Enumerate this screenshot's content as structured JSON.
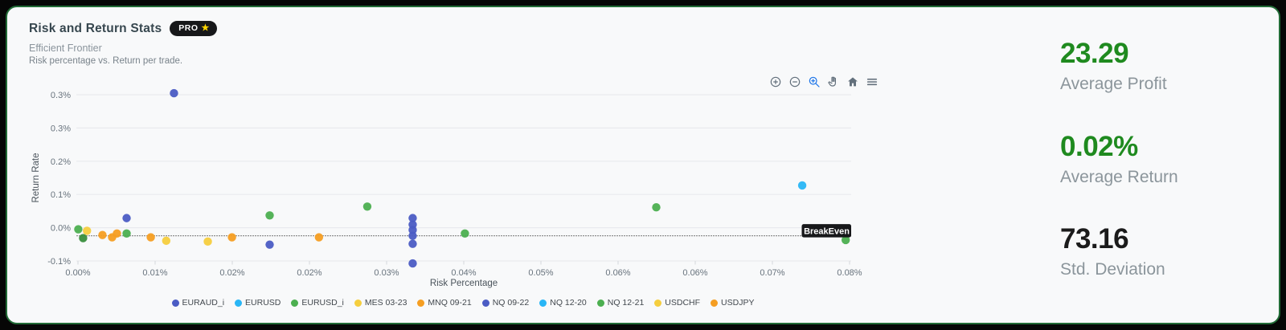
{
  "header": {
    "title": "Risk and Return Stats",
    "badge": "PRO",
    "badge_star": "★",
    "subtitle": "Efficient Frontier",
    "description": "Risk percentage vs. Return per trade."
  },
  "toolbar": {
    "buttons": [
      {
        "name": "zoom-in"
      },
      {
        "name": "zoom-out"
      },
      {
        "name": "box-zoom",
        "active": true
      },
      {
        "name": "pan"
      },
      {
        "name": "reset-axes"
      },
      {
        "name": "menu"
      }
    ]
  },
  "chart_data": {
    "type": "scatter",
    "title": "Efficient Frontier",
    "xlabel": "Risk Percentage",
    "ylabel": "Return Rate",
    "x_tick_labels": [
      "0.00%",
      "0.01%",
      "0.02%",
      "0.02%",
      "0.03%",
      "0.04%",
      "0.05%",
      "0.06%",
      "0.06%",
      "0.07%",
      "0.08%"
    ],
    "y_tick_labels": [
      "0.3%",
      "0.3%",
      "0.2%",
      "0.1%",
      "0.0%",
      "-0.1%"
    ],
    "xlim_pct": [
      0.0,
      0.08
    ],
    "ylim_pct": [
      -0.11,
      0.37
    ],
    "grid": "horizontal-only",
    "breakeven": {
      "label": "BreakEven",
      "y_pct": -0.021
    },
    "colors": {
      "indigo": "#4B5CC4",
      "lightblue": "#29B6F6",
      "green": "#4CAF50",
      "greenDark": "#388E3C",
      "yellow": "#F5CE3E",
      "orange": "#F59E22"
    },
    "legend": [
      {
        "label": "EURAUD_i",
        "color": "indigo"
      },
      {
        "label": "EURUSD",
        "color": "lightblue"
      },
      {
        "label": "EURUSD_i",
        "color": "green"
      },
      {
        "label": "MES 03-23",
        "color": "yellow"
      },
      {
        "label": "MNQ 09-21",
        "color": "orange"
      },
      {
        "label": "NQ 09-22",
        "color": "indigo"
      },
      {
        "label": "NQ 12-20",
        "color": "lightblue"
      },
      {
        "label": "NQ 12-21",
        "color": "green"
      },
      {
        "label": "USDCHF",
        "color": "yellow"
      },
      {
        "label": "USDJPY",
        "color": "orange"
      }
    ],
    "points": [
      {
        "x": 0.0002,
        "y": -0.004,
        "c": "green"
      },
      {
        "x": 0.0007,
        "y": -0.027,
        "c": "greenDark"
      },
      {
        "x": 0.0011,
        "y": -0.008,
        "c": "yellow"
      },
      {
        "x": 0.0027,
        "y": -0.019,
        "c": "orange"
      },
      {
        "x": 0.0037,
        "y": -0.025,
        "c": "orange"
      },
      {
        "x": 0.0042,
        "y": -0.015,
        "c": "orange"
      },
      {
        "x": 0.0052,
        "y": -0.015,
        "c": "green"
      },
      {
        "x": 0.0052,
        "y": 0.025,
        "c": "indigo"
      },
      {
        "x": 0.0077,
        "y": -0.025,
        "c": "orange"
      },
      {
        "x": 0.0093,
        "y": -0.034,
        "c": "yellow"
      },
      {
        "x": 0.0101,
        "y": 0.35,
        "c": "indigo"
      },
      {
        "x": 0.0136,
        "y": -0.036,
        "c": "yellow"
      },
      {
        "x": 0.0161,
        "y": -0.025,
        "c": "orange"
      },
      {
        "x": 0.02,
        "y": 0.032,
        "c": "green"
      },
      {
        "x": 0.02,
        "y": -0.044,
        "c": "indigo"
      },
      {
        "x": 0.0251,
        "y": -0.025,
        "c": "orange"
      },
      {
        "x": 0.0301,
        "y": 0.055,
        "c": "green"
      },
      {
        "x": 0.0348,
        "y": 0.025,
        "c": "indigo"
      },
      {
        "x": 0.0348,
        "y": 0.008,
        "c": "indigo"
      },
      {
        "x": 0.0348,
        "y": -0.006,
        "c": "indigo"
      },
      {
        "x": 0.0348,
        "y": -0.021,
        "c": "indigo"
      },
      {
        "x": 0.0348,
        "y": -0.042,
        "c": "indigo"
      },
      {
        "x": 0.0348,
        "y": -0.093,
        "c": "indigo"
      },
      {
        "x": 0.0402,
        "y": -0.015,
        "c": "green"
      },
      {
        "x": 0.06,
        "y": 0.053,
        "c": "green"
      },
      {
        "x": 0.0751,
        "y": 0.11,
        "c": "lightblue"
      },
      {
        "x": 0.0796,
        "y": -0.032,
        "c": "green"
      }
    ]
  },
  "stats": [
    {
      "value": "23.29",
      "label": "Average Profit",
      "color": "#1f8a1f"
    },
    {
      "value": "0.02%",
      "label": "Average Return",
      "color": "#1f8a1f"
    },
    {
      "value": "73.16",
      "label": "Std. Deviation",
      "color": "#1b1b1b"
    }
  ]
}
